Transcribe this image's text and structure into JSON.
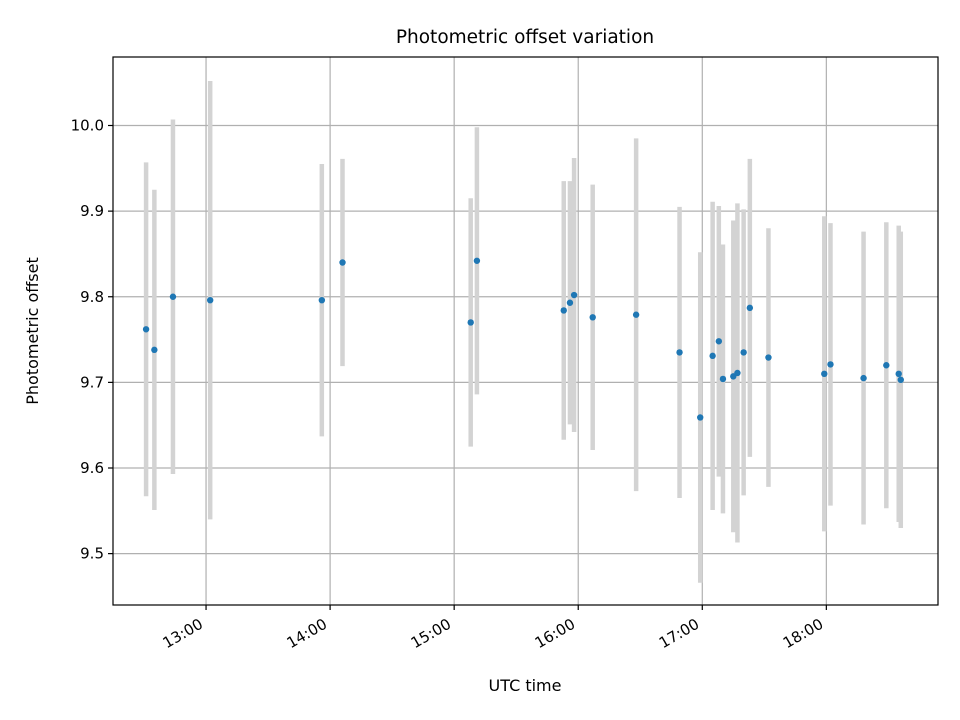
{
  "chart_data": {
    "type": "scatter",
    "title": "Photometric offset variation",
    "xlabel": "UTC time",
    "ylabel": "Photometric offset",
    "xlim": [
      "12:15",
      "18:54"
    ],
    "ylim": [
      9.44,
      10.08
    ],
    "x_ticks": [
      "13:00",
      "14:00",
      "15:00",
      "16:00",
      "17:00",
      "18:00"
    ],
    "y_ticks": [
      9.5,
      9.6,
      9.7,
      9.8,
      9.9,
      10.0
    ],
    "y_tick_labels": [
      "9.5",
      "9.6",
      "9.7",
      "9.8",
      "9.9",
      "10.0"
    ],
    "grid": true,
    "colors": {
      "points": "#1f77b4",
      "error_bars": "#d3d3d3",
      "grid": "#b0b0b0"
    },
    "series": [
      {
        "x": [
          "12:31",
          "12:35",
          "12:44",
          "13:02",
          "13:56",
          "14:06",
          "15:08",
          "15:11",
          "15:53",
          "15:56",
          "15:58",
          "16:07",
          "16:28",
          "16:49",
          "16:59",
          "17:05",
          "17:08",
          "17:10",
          "17:15",
          "17:17",
          "17:20",
          "17:23",
          "17:32",
          "17:59",
          "18:02",
          "18:18",
          "18:29",
          "18:35",
          "18:36"
        ],
        "y": [
          9.762,
          9.738,
          9.8,
          9.796,
          9.796,
          9.84,
          9.77,
          9.842,
          9.784,
          9.793,
          9.802,
          9.776,
          9.779,
          9.735,
          9.659,
          9.731,
          9.748,
          9.704,
          9.707,
          9.711,
          9.735,
          9.787,
          9.729,
          9.71,
          9.721,
          9.705,
          9.72,
          9.71,
          9.703
        ],
        "yerr": [
          0.195,
          0.187,
          0.207,
          0.256,
          0.159,
          0.121,
          0.145,
          0.156,
          0.151,
          0.142,
          0.16,
          0.155,
          0.206,
          0.17,
          0.193,
          0.18,
          0.158,
          0.157,
          0.182,
          0.198,
          0.167,
          0.174,
          0.151,
          0.184,
          0.165,
          0.171,
          0.167,
          0.173,
          0.173
        ]
      }
    ]
  }
}
